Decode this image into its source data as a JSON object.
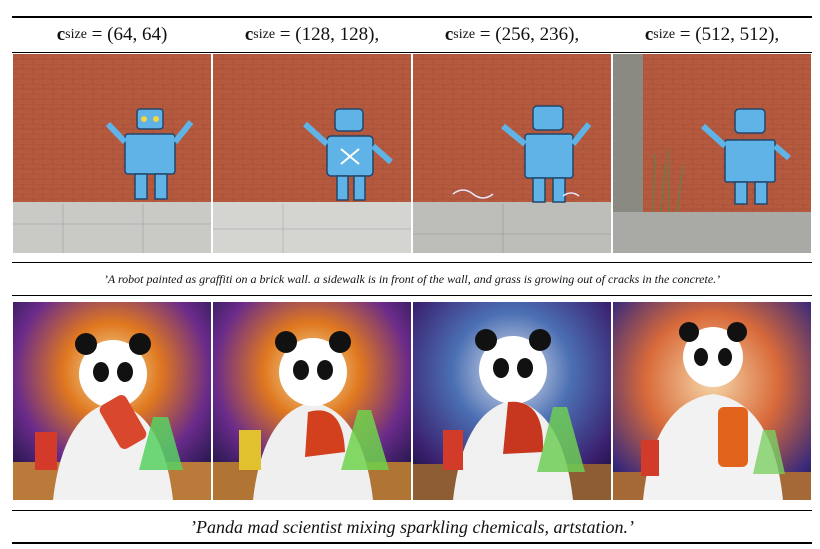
{
  "columns": [
    {
      "var": "c",
      "sub": "size",
      "value": "= (64, 64)"
    },
    {
      "var": "c",
      "sub": "size",
      "value": "= (128, 128),"
    },
    {
      "var": "c",
      "sub": "size",
      "value": "= (256, 236),"
    },
    {
      "var": "c",
      "sub": "size",
      "value": "= (512, 512),"
    }
  ],
  "captions": {
    "robot": "’A robot painted as graffiti on a brick wall. a sidewalk is in front of the wall, and grass is growing out of cracks in the concrete.’",
    "panda": "’Panda mad scientist mixing sparkling chemicals, artstation.’"
  },
  "colors": {
    "brick": "#b9563a",
    "robot": "#5fb3e6",
    "panda_bg": "#3b2a7a"
  }
}
